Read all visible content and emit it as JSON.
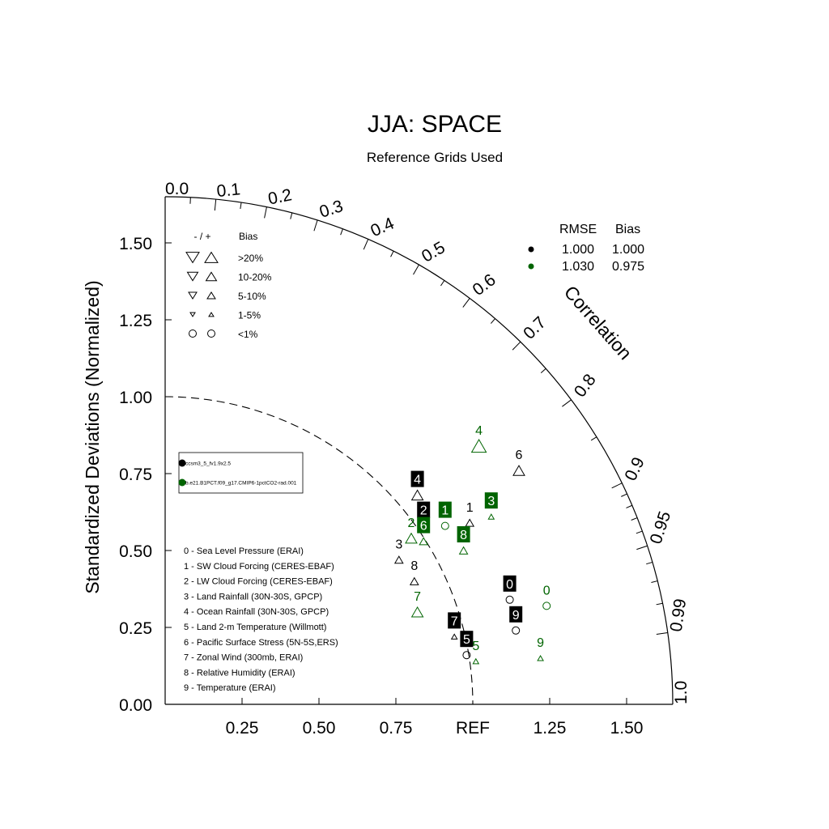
{
  "chart_data": {
    "type": "scatter",
    "title": "JJA: SPACE",
    "subtitle": "Reference Grids Used",
    "ylabel": "Standardized Deviations (Normalized)",
    "arc_label": "Correlation",
    "ref_label": "REF",
    "xlim": [
      0,
      1.65
    ],
    "ylim": [
      0,
      1.65
    ],
    "x_ticks": [
      "0.25",
      "0.50",
      "0.75",
      "1.25",
      "1.50"
    ],
    "x_tick_values": [
      0.25,
      0.5,
      0.75,
      1.25,
      1.5
    ],
    "y_ticks": [
      "0.00",
      "0.25",
      "0.50",
      "0.75",
      "1.00",
      "1.25",
      "1.50"
    ],
    "y_tick_values": [
      0,
      0.25,
      0.5,
      0.75,
      1.0,
      1.25,
      1.5
    ],
    "corr_ticks": [
      "0.0",
      "0.1",
      "0.2",
      "0.3",
      "0.4",
      "0.5",
      "0.6",
      "0.7",
      "0.8",
      "0.9",
      "0.95",
      "0.99",
      "1.0"
    ],
    "corr_tick_values": [
      0.0,
      0.1,
      0.2,
      0.3,
      0.4,
      0.5,
      0.6,
      0.7,
      0.8,
      0.9,
      0.95,
      0.99,
      1.0
    ],
    "corr_minor_values": [
      0.05,
      0.15,
      0.25,
      0.35,
      0.45,
      0.55,
      0.65,
      0.75,
      0.85,
      0.91,
      0.92,
      0.93,
      0.94,
      0.96,
      0.97,
      0.98
    ],
    "ref_arc_radius": 1.0,
    "colors": {
      "case1": "#000000",
      "case2": "#006400"
    },
    "bias_legend": {
      "header_sign": "- / +",
      "header_bias": "Bias",
      "rows": [
        {
          "label": ">20%",
          "marker": "triangle-large"
        },
        {
          "label": "10-20%",
          "marker": "triangle-medium"
        },
        {
          "label": "5-10%",
          "marker": "triangle-small"
        },
        {
          "label": "1-5%",
          "marker": "triangle-tiny"
        },
        {
          "label": "<1%",
          "marker": "circle"
        }
      ]
    },
    "case_legend": [
      {
        "name": "ccsm3_5_fv1.9x2.5",
        "color": "#000000"
      },
      {
        "name": "b.e21.B1PCT.f09_g17.CMIP6-1pctCO2-rad.001",
        "color": "#006400"
      }
    ],
    "stats_legend": {
      "headers": [
        "RMSE",
        "Bias"
      ],
      "rows": [
        {
          "rmse": "1.000",
          "bias": "1.000",
          "color": "#000000"
        },
        {
          "rmse": "1.030",
          "bias": "0.975",
          "color": "#006400"
        }
      ]
    },
    "variables": [
      "0 - Sea Level Pressure (ERAI)",
      "1 - SW Cloud Forcing (CERES-EBAF)",
      "2 - LW Cloud Forcing (CERES-EBAF)",
      "3 - Land Rainfall (30N-30S, GPCP)",
      "4 - Ocean Rainfall (30N-30S, GPCP)",
      "5 - Land 2-m Temperature (Willmott)",
      "6 - Pacific Surface Stress (5N-5S,ERS)",
      "7 - Zonal Wind (300mb, ERAI)",
      "8 - Relative Humidity (ERAI)",
      "9 - Temperature (ERAI)"
    ],
    "series": [
      {
        "name": "ccsm3_5_fv1.9x2.5",
        "color": "#000000",
        "points": [
          {
            "id": "0",
            "x": 1.12,
            "y": 0.34,
            "marker": "circle",
            "boxed": true
          },
          {
            "id": "1",
            "x": 0.99,
            "y": 0.59,
            "marker": "triangle-up-small",
            "boxed": false
          },
          {
            "id": "2",
            "x": 0.84,
            "y": 0.58,
            "marker": "triangle-down-tiny",
            "boxed": true
          },
          {
            "id": "3",
            "x": 0.76,
            "y": 0.47,
            "marker": "triangle-up-small",
            "boxed": false
          },
          {
            "id": "4",
            "x": 0.82,
            "y": 0.68,
            "marker": "triangle-up-medium",
            "boxed": true
          },
          {
            "id": "5",
            "x": 0.98,
            "y": 0.16,
            "marker": "circle",
            "boxed": true
          },
          {
            "id": "6",
            "x": 1.15,
            "y": 0.76,
            "marker": "triangle-up-medium",
            "boxed": false
          },
          {
            "id": "7",
            "x": 0.94,
            "y": 0.22,
            "marker": "triangle-up-tiny",
            "boxed": true
          },
          {
            "id": "8",
            "x": 0.81,
            "y": 0.4,
            "marker": "triangle-up-small",
            "boxed": false
          },
          {
            "id": "9",
            "x": 1.14,
            "y": 0.24,
            "marker": "circle",
            "boxed": true
          }
        ]
      },
      {
        "name": "b.e21.B1PCT.f09_g17.CMIP6-1pctCO2-rad.001",
        "color": "#006400",
        "points": [
          {
            "id": "0",
            "x": 1.24,
            "y": 0.32,
            "marker": "circle",
            "boxed": false
          },
          {
            "id": "1",
            "x": 0.91,
            "y": 0.58,
            "marker": "circle",
            "boxed": true
          },
          {
            "id": "2",
            "x": 0.8,
            "y": 0.54,
            "marker": "triangle-up-medium",
            "boxed": false
          },
          {
            "id": "3",
            "x": 1.06,
            "y": 0.61,
            "marker": "triangle-up-tiny",
            "boxed": true
          },
          {
            "id": "4",
            "x": 1.02,
            "y": 0.84,
            "marker": "triangle-up-large",
            "boxed": false
          },
          {
            "id": "5",
            "x": 1.01,
            "y": 0.14,
            "marker": "triangle-up-tiny",
            "boxed": false
          },
          {
            "id": "6",
            "x": 0.84,
            "y": 0.53,
            "marker": "triangle-up-small",
            "boxed": true
          },
          {
            "id": "7",
            "x": 0.82,
            "y": 0.3,
            "marker": "triangle-up-medium",
            "boxed": false
          },
          {
            "id": "8",
            "x": 0.97,
            "y": 0.5,
            "marker": "triangle-up-small",
            "boxed": true
          },
          {
            "id": "9",
            "x": 1.22,
            "y": 0.15,
            "marker": "triangle-up-tiny",
            "boxed": false
          }
        ]
      }
    ]
  }
}
